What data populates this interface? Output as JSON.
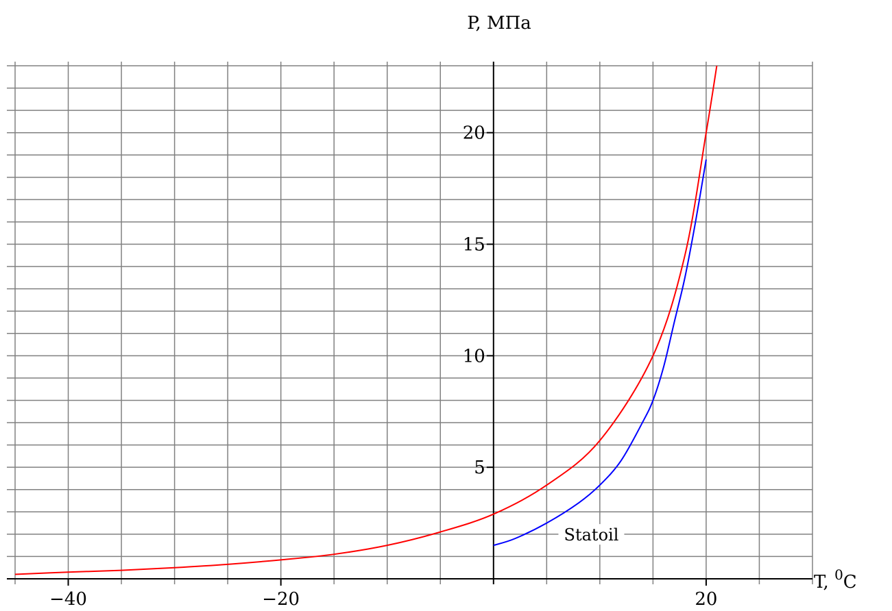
{
  "chart_data": {
    "type": "line",
    "title": "",
    "xlabel": "T, ",
    "xlabel_superscript": "0",
    "xlabel_unit": "C",
    "ylabel": "P, МПа",
    "xlim": [
      -45,
      30
    ],
    "ylim": [
      0,
      23
    ],
    "x_gridlines": [
      -45,
      -40,
      -35,
      -30,
      -25,
      -20,
      -15,
      -10,
      -5,
      0,
      5,
      10,
      15,
      20,
      25,
      30
    ],
    "y_gridlines": [
      0,
      1,
      2,
      3,
      4,
      5,
      6,
      7,
      8,
      9,
      10,
      11,
      12,
      13,
      14,
      15,
      16,
      17,
      18,
      19,
      20,
      21,
      22,
      23
    ],
    "grid": true,
    "x_ticks": [
      {
        "value": -40,
        "label": "−40"
      },
      {
        "value": -20,
        "label": "−20"
      },
      {
        "value": 20,
        "label": "20"
      }
    ],
    "y_ticks": [
      {
        "value": 5,
        "label": "5"
      },
      {
        "value": 10,
        "label": "10"
      },
      {
        "value": 15,
        "label": "15"
      },
      {
        "value": 20,
        "label": "20"
      }
    ],
    "series": [
      {
        "color": "#ff0000",
        "x": [
          -45,
          -40,
          -35,
          -30,
          -25,
          -20,
          -15,
          -10,
          -5,
          0,
          5,
          10,
          15,
          18,
          20,
          21
        ],
        "y": [
          0.2,
          0.3,
          0.38,
          0.5,
          0.65,
          0.85,
          1.1,
          1.5,
          2.1,
          2.9,
          4.2,
          6.2,
          10.0,
          14.5,
          20.0,
          23.0
        ]
      },
      {
        "color": "#0000ff",
        "label": "Statoil",
        "x": [
          0,
          2,
          5,
          8,
          10,
          12,
          14,
          15,
          16,
          17,
          18,
          19,
          20
        ],
        "y": [
          1.5,
          1.8,
          2.5,
          3.4,
          4.2,
          5.3,
          7.0,
          8.0,
          9.5,
          11.5,
          13.5,
          16.0,
          18.8
        ]
      }
    ],
    "annotations": [
      {
        "text": "Statoil",
        "x": 9.2,
        "y": 1.9
      }
    ]
  }
}
